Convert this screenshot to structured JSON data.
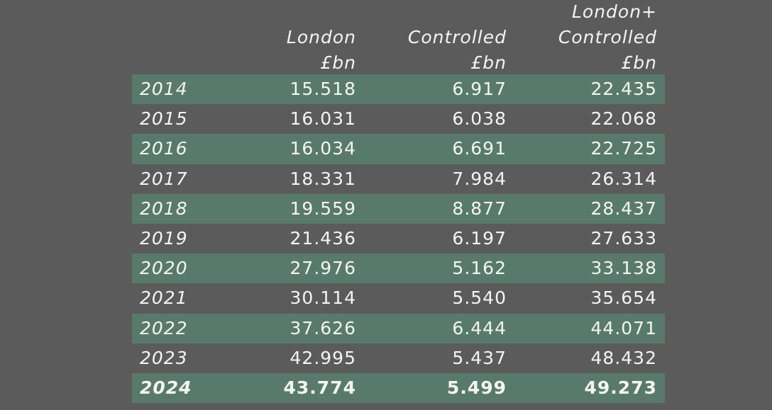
{
  "table": {
    "columns": [
      {
        "lines": [
          "London",
          "£bn"
        ]
      },
      {
        "lines": [
          "Controlled",
          "£bn"
        ]
      },
      {
        "lines": [
          "London+",
          "Controlled",
          "£bn"
        ]
      }
    ],
    "rows": [
      [
        "2014",
        "15.518",
        "6.917",
        "22.435"
      ],
      [
        "2015",
        "16.031",
        "6.038",
        "22.068"
      ],
      [
        "2016",
        "16.034",
        "6.691",
        "22.725"
      ],
      [
        "2017",
        "18.331",
        "7.984",
        "26.314"
      ],
      [
        "2018",
        "19.559",
        "8.877",
        "28.437"
      ],
      [
        "2019",
        "21.436",
        "6.197",
        "27.633"
      ],
      [
        "2020",
        "27.976",
        "5.162",
        "33.138"
      ],
      [
        "2021",
        "30.114",
        "5.540",
        "35.654"
      ],
      [
        "2022",
        "37.626",
        "6.444",
        "44.071"
      ],
      [
        "2023",
        "42.995",
        "5.437",
        "48.432"
      ],
      [
        "2024",
        "43.774",
        "5.499",
        "49.273"
      ]
    ]
  }
}
